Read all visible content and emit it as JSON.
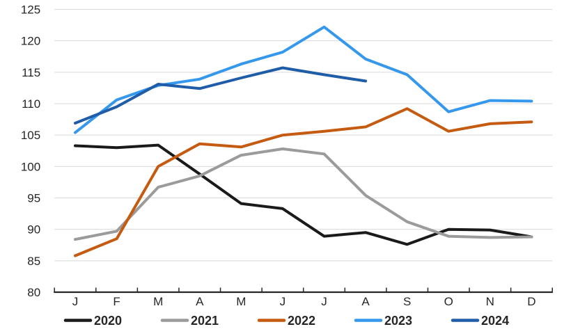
{
  "chart_data": {
    "type": "line",
    "title": "",
    "xlabel": "",
    "ylabel": "",
    "categories": [
      "J",
      "F",
      "M",
      "A",
      "M",
      "J",
      "J",
      "A",
      "S",
      "O",
      "N",
      "D"
    ],
    "ylim": [
      80,
      125
    ],
    "ytick_interval": 5,
    "yticks": [
      80,
      85,
      90,
      95,
      100,
      105,
      110,
      115,
      120,
      125
    ],
    "grid": "horizontal",
    "legend_position": "bottom",
    "series": [
      {
        "name": "2020",
        "color": "#1A1A1A",
        "values": [
          103.3,
          103.0,
          103.4,
          98.8,
          94.1,
          93.3,
          88.9,
          89.5,
          87.6,
          90.0,
          89.9,
          88.8
        ]
      },
      {
        "name": "2021",
        "color": "#9B9B9B",
        "values": [
          88.4,
          89.7,
          96.7,
          98.5,
          101.8,
          102.8,
          102.0,
          95.4,
          91.2,
          88.9,
          88.7,
          88.8
        ]
      },
      {
        "name": "2022",
        "color": "#C55A11",
        "values": [
          85.8,
          88.5,
          100.0,
          103.6,
          103.1,
          105.0,
          105.6,
          106.3,
          109.2,
          105.6,
          106.8,
          107.1
        ]
      },
      {
        "name": "2023",
        "color": "#3698EC",
        "values": [
          105.4,
          110.6,
          112.9,
          113.9,
          116.3,
          118.2,
          122.2,
          117.1,
          114.6,
          108.7,
          110.5,
          110.4
        ]
      },
      {
        "name": "2024",
        "color": "#1F5DA9",
        "values": [
          106.9,
          109.5,
          113.1,
          112.4,
          114.1,
          115.7,
          114.6,
          113.6,
          null,
          null,
          null,
          null
        ]
      }
    ],
    "styles": {
      "grid_color": "#D9D9D9",
      "axis_color": "#262626",
      "label_color": "#262626",
      "background": "#FFFFFF"
    }
  }
}
